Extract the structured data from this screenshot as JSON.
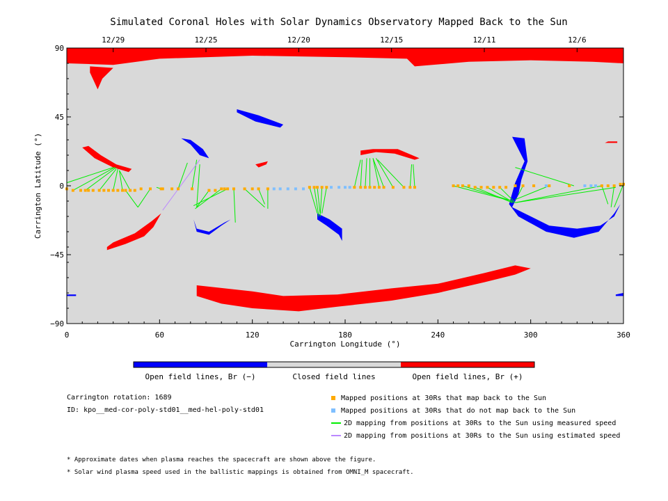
{
  "colors": {
    "background": "#d9d9d9",
    "positive": "#ff0000",
    "negative": "#0000ff",
    "mapped": "#ffaa00",
    "unmapped": "#7fbfff",
    "measured_line": "#00ee00",
    "estimated_line": "#bb88ff"
  },
  "chart_data": {
    "type": "scatter",
    "title": "Simulated Coronal Holes with Solar Dynamics Observatory Mapped Back to the Sun",
    "xlabel": "Carrington Longitude (°)",
    "ylabel": "Carrington Latitude (°)",
    "xlim": [
      0,
      360
    ],
    "ylim": [
      -90,
      90
    ],
    "x_ticks": [
      0,
      60,
      120,
      180,
      240,
      300,
      360
    ],
    "y_ticks": [
      "90",
      "45",
      "0",
      "−45",
      "−90"
    ],
    "y_tick_values": [
      90,
      45,
      0,
      -45,
      -90
    ],
    "top_axis_dates": [
      {
        "label": "12/29",
        "lon": 30
      },
      {
        "label": "12/25",
        "lon": 90
      },
      {
        "label": "12/20",
        "lon": 150
      },
      {
        "label": "12/15",
        "lon": 210
      },
      {
        "label": "12/11",
        "lon": 270
      },
      {
        "label": "12/6",
        "lon": 330
      }
    ],
    "coronal_holes": [
      {
        "polarity": "positive",
        "points": [
          [
            0,
            80
          ],
          [
            30,
            79
          ],
          [
            60,
            83
          ],
          [
            120,
            85
          ],
          [
            180,
            84
          ],
          [
            220,
            83
          ],
          [
            225,
            78
          ],
          [
            260,
            81
          ],
          [
            300,
            82
          ],
          [
            340,
            81
          ],
          [
            360,
            80
          ],
          [
            360,
            90
          ],
          [
            0,
            90
          ]
        ]
      },
      {
        "polarity": "positive",
        "points": [
          [
            15,
            74
          ],
          [
            20,
            63
          ],
          [
            23,
            70
          ],
          [
            30,
            77
          ],
          [
            15,
            78
          ]
        ]
      },
      {
        "polarity": "positive",
        "points": [
          [
            10,
            25
          ],
          [
            18,
            18
          ],
          [
            30,
            12
          ],
          [
            40,
            9
          ],
          [
            42,
            11
          ],
          [
            32,
            14
          ],
          [
            22,
            20
          ],
          [
            14,
            26
          ]
        ]
      },
      {
        "polarity": "positive",
        "points": [
          [
            190,
            20
          ],
          [
            200,
            22
          ],
          [
            212,
            21
          ],
          [
            225,
            17
          ],
          [
            228,
            18
          ],
          [
            214,
            24
          ],
          [
            198,
            24
          ],
          [
            190,
            23
          ]
        ]
      },
      {
        "polarity": "positive",
        "points": [
          [
            122,
            14
          ],
          [
            130,
            16
          ],
          [
            129,
            14
          ],
          [
            124,
            12
          ]
        ]
      },
      {
        "polarity": "positive",
        "points": [
          [
            348,
            28
          ],
          [
            356,
            28
          ],
          [
            356,
            29
          ],
          [
            350,
            29
          ]
        ]
      },
      {
        "polarity": "positive",
        "points": [
          [
            26,
            -42
          ],
          [
            38,
            -38
          ],
          [
            50,
            -33
          ],
          [
            56,
            -27
          ],
          [
            61,
            -18
          ],
          [
            55,
            -23
          ],
          [
            44,
            -31
          ],
          [
            30,
            -37
          ],
          [
            26,
            -40
          ]
        ]
      },
      {
        "polarity": "positive",
        "points": [
          [
            84,
            -65
          ],
          [
            120,
            -69
          ],
          [
            140,
            -72
          ],
          [
            175,
            -71
          ],
          [
            210,
            -67
          ],
          [
            240,
            -64
          ],
          [
            270,
            -57
          ],
          [
            290,
            -52
          ],
          [
            300,
            -54
          ],
          [
            290,
            -58
          ],
          [
            270,
            -63
          ],
          [
            240,
            -70
          ],
          [
            210,
            -75
          ],
          [
            175,
            -79
          ],
          [
            150,
            -82
          ],
          [
            120,
            -80
          ],
          [
            100,
            -77
          ],
          [
            84,
            -72
          ]
        ]
      },
      {
        "polarity": "negative",
        "points": [
          [
            110,
            50
          ],
          [
            124,
            46
          ],
          [
            140,
            40
          ],
          [
            138,
            38
          ],
          [
            122,
            42
          ],
          [
            110,
            48
          ]
        ]
      },
      {
        "polarity": "negative",
        "points": [
          [
            74,
            31
          ],
          [
            80,
            27
          ],
          [
            86,
            20
          ],
          [
            92,
            18
          ],
          [
            88,
            24
          ],
          [
            80,
            30
          ]
        ]
      },
      {
        "polarity": "negative",
        "points": [
          [
            288,
            32
          ],
          [
            296,
            31
          ],
          [
            298,
            16
          ],
          [
            294,
            4
          ],
          [
            292,
            -6
          ],
          [
            288,
            -14
          ],
          [
            296,
            -18
          ],
          [
            312,
            -26
          ],
          [
            330,
            -28
          ],
          [
            345,
            -26
          ],
          [
            354,
            -20
          ],
          [
            358,
            -12
          ],
          [
            354,
            -18
          ],
          [
            344,
            -30
          ],
          [
            328,
            -34
          ],
          [
            310,
            -30
          ],
          [
            292,
            -20
          ],
          [
            286,
            -12
          ],
          [
            290,
            2
          ],
          [
            296,
            16
          ]
        ]
      },
      {
        "polarity": "negative",
        "points": [
          [
            162,
            -18
          ],
          [
            170,
            -22
          ],
          [
            178,
            -28
          ],
          [
            178,
            -36
          ],
          [
            176,
            -32
          ],
          [
            168,
            -26
          ],
          [
            162,
            -22
          ]
        ]
      },
      {
        "polarity": "negative",
        "points": [
          [
            82,
            -22
          ],
          [
            84,
            -28
          ],
          [
            92,
            -30
          ],
          [
            102,
            -24
          ],
          [
            106,
            -22
          ],
          [
            100,
            -26
          ],
          [
            92,
            -32
          ],
          [
            84,
            -30
          ]
        ]
      },
      {
        "polarity": "negative",
        "points": [
          [
            0,
            -71
          ],
          [
            6,
            -71
          ],
          [
            6,
            -72
          ],
          [
            0,
            -72
          ]
        ]
      },
      {
        "polarity": "negative",
        "points": [
          [
            355,
            -71
          ],
          [
            360,
            -70
          ],
          [
            360,
            -72
          ],
          [
            355,
            -72
          ]
        ]
      }
    ],
    "mapped_points": [
      [
        0,
        -2
      ],
      [
        4,
        -3
      ],
      [
        9,
        -3
      ],
      [
        12,
        -3
      ],
      [
        14,
        -3
      ],
      [
        17,
        -3
      ],
      [
        21,
        -3
      ],
      [
        24,
        -3
      ],
      [
        27,
        -3
      ],
      [
        30,
        -3
      ],
      [
        33,
        -3
      ],
      [
        36,
        -3
      ],
      [
        38,
        -3
      ],
      [
        41,
        -3
      ],
      [
        44,
        -3
      ],
      [
        48,
        -2
      ],
      [
        54,
        -2
      ],
      [
        61,
        -2
      ],
      [
        62,
        -2
      ],
      [
        68,
        -2
      ],
      [
        72,
        -2
      ],
      [
        81,
        -2
      ],
      [
        92,
        -3
      ],
      [
        96,
        -3
      ],
      [
        100,
        -2
      ],
      [
        102,
        -2
      ],
      [
        104,
        -2
      ],
      [
        108,
        -2
      ],
      [
        115,
        -2
      ],
      [
        120,
        -2
      ],
      [
        124,
        -2
      ],
      [
        130,
        -2
      ],
      [
        157,
        -1
      ],
      [
        160,
        -1
      ],
      [
        162,
        -1
      ],
      [
        165,
        -1
      ],
      [
        168,
        -1
      ],
      [
        186,
        -1
      ],
      [
        190,
        -1
      ],
      [
        193,
        -1
      ],
      [
        196,
        -1
      ],
      [
        199,
        -1
      ],
      [
        202,
        -1
      ],
      [
        205,
        -1
      ],
      [
        211,
        -1
      ],
      [
        218,
        -1
      ],
      [
        222,
        -1
      ],
      [
        225,
        -1
      ],
      [
        250,
        0
      ],
      [
        253,
        0
      ],
      [
        256,
        0
      ],
      [
        260,
        0
      ],
      [
        264,
        -1
      ],
      [
        268,
        -1
      ],
      [
        272,
        -1
      ],
      [
        276,
        -1
      ],
      [
        280,
        -1
      ],
      [
        284,
        -1
      ],
      [
        290,
        0
      ],
      [
        295,
        0
      ],
      [
        302,
        0
      ],
      [
        312,
        0
      ],
      [
        325,
        0
      ],
      [
        346,
        0
      ],
      [
        350,
        0
      ],
      [
        354,
        0
      ],
      [
        358,
        1
      ],
      [
        360,
        1
      ]
    ],
    "unmapped_points": [
      [
        134,
        -2
      ],
      [
        138,
        -2
      ],
      [
        143,
        -2
      ],
      [
        148,
        -2
      ],
      [
        153,
        -2
      ],
      [
        171,
        -1
      ],
      [
        176,
        -1
      ],
      [
        180,
        -1
      ],
      [
        183,
        -1
      ],
      [
        310,
        0
      ],
      [
        335,
        0
      ],
      [
        339,
        0
      ],
      [
        342,
        0
      ]
    ],
    "measured_lines": [
      [
        [
          0,
          2
        ],
        [
          30,
          12
        ]
      ],
      [
        [
          4,
          -3
        ],
        [
          31,
          12
        ]
      ],
      [
        [
          12,
          -3
        ],
        [
          32,
          12
        ]
      ],
      [
        [
          21,
          -3
        ],
        [
          32,
          11
        ]
      ],
      [
        [
          30,
          -3
        ],
        [
          33,
          11
        ]
      ],
      [
        [
          36,
          -3
        ],
        [
          34,
          10
        ]
      ],
      [
        [
          41,
          -3
        ],
        [
          34,
          10
        ]
      ],
      [
        [
          54,
          -2
        ],
        [
          46,
          -14
        ]
      ],
      [
        [
          46,
          -14
        ],
        [
          38,
          -3
        ]
      ],
      [
        [
          61,
          -2
        ],
        [
          58,
          -1
        ]
      ],
      [
        [
          72,
          -2
        ],
        [
          78,
          15
        ]
      ],
      [
        [
          81,
          -2
        ],
        [
          84,
          17
        ]
      ],
      [
        [
          86,
          14
        ],
        [
          84,
          -14
        ]
      ],
      [
        [
          92,
          -3
        ],
        [
          84,
          -14
        ]
      ],
      [
        [
          100,
          -2
        ],
        [
          83,
          -15
        ]
      ],
      [
        [
          104,
          -2
        ],
        [
          82,
          -13
        ]
      ],
      [
        [
          108,
          -2
        ],
        [
          109,
          -24
        ]
      ],
      [
        [
          115,
          -2
        ],
        [
          128,
          -14
        ]
      ],
      [
        [
          124,
          -2
        ],
        [
          128,
          -12
        ]
      ],
      [
        [
          130,
          -2
        ],
        [
          130,
          -15
        ]
      ],
      [
        [
          157,
          -1
        ],
        [
          162,
          -18
        ]
      ],
      [
        [
          160,
          -1
        ],
        [
          163,
          -20
        ]
      ],
      [
        [
          162,
          -1
        ],
        [
          164,
          -20
        ]
      ],
      [
        [
          165,
          -1
        ],
        [
          164,
          -18
        ]
      ],
      [
        [
          168,
          -1
        ],
        [
          165,
          -18
        ]
      ],
      [
        [
          186,
          -1
        ],
        [
          190,
          17
        ]
      ],
      [
        [
          190,
          -1
        ],
        [
          191,
          17
        ]
      ],
      [
        [
          193,
          -1
        ],
        [
          194,
          18
        ]
      ],
      [
        [
          196,
          -1
        ],
        [
          196,
          18
        ]
      ],
      [
        [
          202,
          -1
        ],
        [
          198,
          18
        ]
      ],
      [
        [
          205,
          -1
        ],
        [
          198,
          18
        ]
      ],
      [
        [
          211,
          -1
        ],
        [
          200,
          18
        ]
      ],
      [
        [
          218,
          -1
        ],
        [
          201,
          17
        ]
      ],
      [
        [
          222,
          -1
        ],
        [
          223,
          14
        ]
      ],
      [
        [
          225,
          -1
        ],
        [
          224,
          14
        ]
      ],
      [
        [
          250,
          0
        ],
        [
          288,
          -10
        ]
      ],
      [
        [
          256,
          0
        ],
        [
          288,
          -10
        ]
      ],
      [
        [
          264,
          -1
        ],
        [
          288,
          -11
        ]
      ],
      [
        [
          272,
          -1
        ],
        [
          289,
          -11
        ]
      ],
      [
        [
          280,
          -1
        ],
        [
          290,
          -11
        ]
      ],
      [
        [
          290,
          12
        ],
        [
          328,
          0
        ]
      ],
      [
        [
          290,
          -11
        ],
        [
          346,
          0
        ]
      ],
      [
        [
          290,
          -11
        ],
        [
          355,
          -1
        ]
      ],
      [
        [
          312,
          0
        ],
        [
          290,
          -9
        ]
      ],
      [
        [
          295,
          0
        ],
        [
          292,
          -6
        ]
      ],
      [
        [
          346,
          0
        ],
        [
          350,
          -12
        ]
      ],
      [
        [
          354,
          0
        ],
        [
          352,
          -14
        ]
      ],
      [
        [
          360,
          1
        ],
        [
          354,
          -14
        ]
      ]
    ],
    "estimated_lines": [
      [
        [
          62,
          -16
        ],
        [
          86,
          17
        ]
      ]
    ]
  },
  "colorbar": {
    "segments": [
      {
        "color": "#0000ff",
        "label": "Open field lines, Br (−)"
      },
      {
        "color": "#d9d9d9",
        "label": "Closed field lines"
      },
      {
        "color": "#ff0000",
        "label": "Open field lines, Br (+)"
      }
    ]
  },
  "info": {
    "rotation": "Carrington rotation: 1689",
    "id": "ID: kpo__med-cor-poly-std01__med-hel-poly-std01"
  },
  "legend": [
    {
      "kind": "square",
      "color": "#ffaa00",
      "label": "Mapped positions at 30Rs that map back to the Sun"
    },
    {
      "kind": "square",
      "color": "#7fbfff",
      "label": "Mapped positions at 30Rs that do not map back to the Sun"
    },
    {
      "kind": "line",
      "color": "#00ee00",
      "label": "2D mapping from positions at 30Rs to the Sun using measured speed"
    },
    {
      "kind": "line",
      "color": "#bb88ff",
      "label": "2D mapping from positions at 30Rs to the Sun using estimated speed"
    }
  ],
  "notes": [
    "* Approximate dates when plasma reaches the spacecraft are shown above the figure.",
    "* Solar wind plasma speed used in the ballistic mappings is obtained from OMNI_M spacecraft."
  ]
}
